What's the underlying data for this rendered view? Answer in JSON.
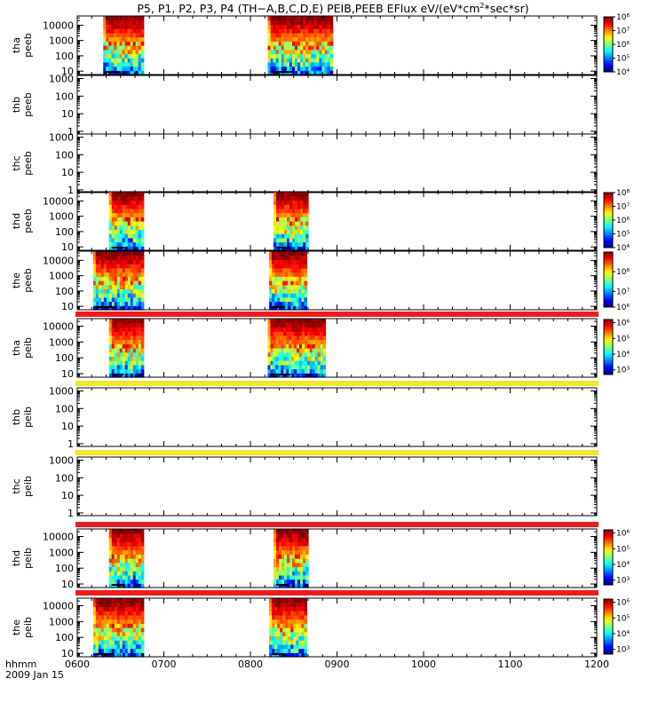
{
  "title": {
    "prefix": "P5, P1, P2, P3, P4 (TH−A,B,C,D,E) PEIB,PEEB EFlux eV/(eV*cm",
    "sup": "2",
    "suffix": "*sec*sr)"
  },
  "chart_data": {
    "type": "heatmap",
    "date_label": "2009 Jan 15",
    "x_title": "hhmm",
    "x_ticks": [
      "0600",
      "0700",
      "0800",
      "0900",
      "1000",
      "1100",
      "1200"
    ],
    "x_range_hhmm": [
      "0600",
      "1200"
    ],
    "panels": [
      {
        "label1": "tha",
        "label2": "peeb",
        "yticks": [
          "10",
          "100",
          "1000",
          "10000"
        ],
        "ymin": 6,
        "ymax": 40000,
        "active": true,
        "blocks": [
          [
            "0618",
            "0646"
          ],
          [
            "0812",
            "0857"
          ]
        ],
        "cbar": {
          "min": 4,
          "max": 8,
          "ticks": [
            "10⁴",
            "10⁵",
            "10⁶",
            "10⁷",
            "10⁸"
          ]
        },
        "bar": null
      },
      {
        "label1": "thb",
        "label2": "peeb",
        "yticks": [
          "1",
          "10",
          "100",
          "1000"
        ],
        "ymin": 0.7,
        "ymax": 1500,
        "active": false,
        "blocks": [],
        "cbar": null,
        "bar": null
      },
      {
        "label1": "thc",
        "label2": "peeb",
        "yticks": [
          "1",
          "10",
          "100",
          "1000"
        ],
        "ymin": 0.7,
        "ymax": 1500,
        "active": false,
        "blocks": [],
        "cbar": null,
        "bar": null
      },
      {
        "label1": "thd",
        "label2": "peeb",
        "yticks": [
          "10",
          "100",
          "1000",
          "10000"
        ],
        "ymin": 6,
        "ymax": 40000,
        "active": true,
        "blocks": [
          [
            "0622",
            "0646"
          ],
          [
            "0816",
            "0840"
          ]
        ],
        "cbar": {
          "min": 4,
          "max": 8,
          "ticks": [
            "10⁴",
            "10⁵",
            "10⁶",
            "10⁷",
            "10⁸"
          ]
        },
        "bar": null
      },
      {
        "label1": "the",
        "label2": "peeb",
        "yticks": [
          "10",
          "100",
          "1000",
          "10000"
        ],
        "ymin": 6,
        "ymax": 40000,
        "active": true,
        "blocks": [
          [
            "0611",
            "0646"
          ],
          [
            "0813",
            "0839"
          ]
        ],
        "cbar": {
          "min": 5.2,
          "max": 8,
          "ticks": [
            "10⁶",
            "10⁷",
            "10⁸"
          ]
        },
        "bar": null
      },
      {
        "label1": "tha",
        "label2": "peib",
        "yticks": [
          "10",
          "100",
          "1000",
          "10000"
        ],
        "ymin": 6,
        "ymax": 30000,
        "active": true,
        "blocks": [
          [
            "0622",
            "0646"
          ],
          [
            "0812",
            "0852"
          ]
        ],
        "cbar": {
          "min": 2.7,
          "max": 6.2,
          "ticks": [
            "10³",
            "10⁴",
            "10⁵",
            "10⁶"
          ]
        },
        "bar": "#ee1c1c"
      },
      {
        "label1": "thb",
        "label2": "peib",
        "yticks": [
          "1",
          "10",
          "100",
          "1000"
        ],
        "ymin": 0.7,
        "ymax": 1500,
        "active": false,
        "blocks": [],
        "cbar": null,
        "bar": "#f2e52c"
      },
      {
        "label1": "thc",
        "label2": "peib",
        "yticks": [
          "1",
          "10",
          "100",
          "1000"
        ],
        "ymin": 0.7,
        "ymax": 1500,
        "active": false,
        "blocks": [],
        "cbar": null,
        "bar": "#f2e52c"
      },
      {
        "label1": "thd",
        "label2": "peib",
        "yticks": [
          "10",
          "100",
          "1000",
          "10000"
        ],
        "ymin": 6,
        "ymax": 30000,
        "active": true,
        "blocks": [
          [
            "0622",
            "0646"
          ],
          [
            "0816",
            "0840"
          ]
        ],
        "cbar": {
          "min": 2.7,
          "max": 6.2,
          "ticks": [
            "10³",
            "10⁴",
            "10⁵",
            "10⁶"
          ]
        },
        "bar": "#ee1c1c"
      },
      {
        "label1": "the",
        "label2": "peib",
        "yticks": [
          "10",
          "100",
          "1000",
          "10000"
        ],
        "ymin": 6,
        "ymax": 30000,
        "active": true,
        "blocks": [
          [
            "0611",
            "0646"
          ],
          [
            "0813",
            "0839"
          ]
        ],
        "cbar": {
          "min": 2.7,
          "max": 6.2,
          "ticks": [
            "10³",
            "10⁴",
            "10⁵",
            "10⁶"
          ]
        },
        "bar": "#ee1c1c"
      }
    ]
  }
}
